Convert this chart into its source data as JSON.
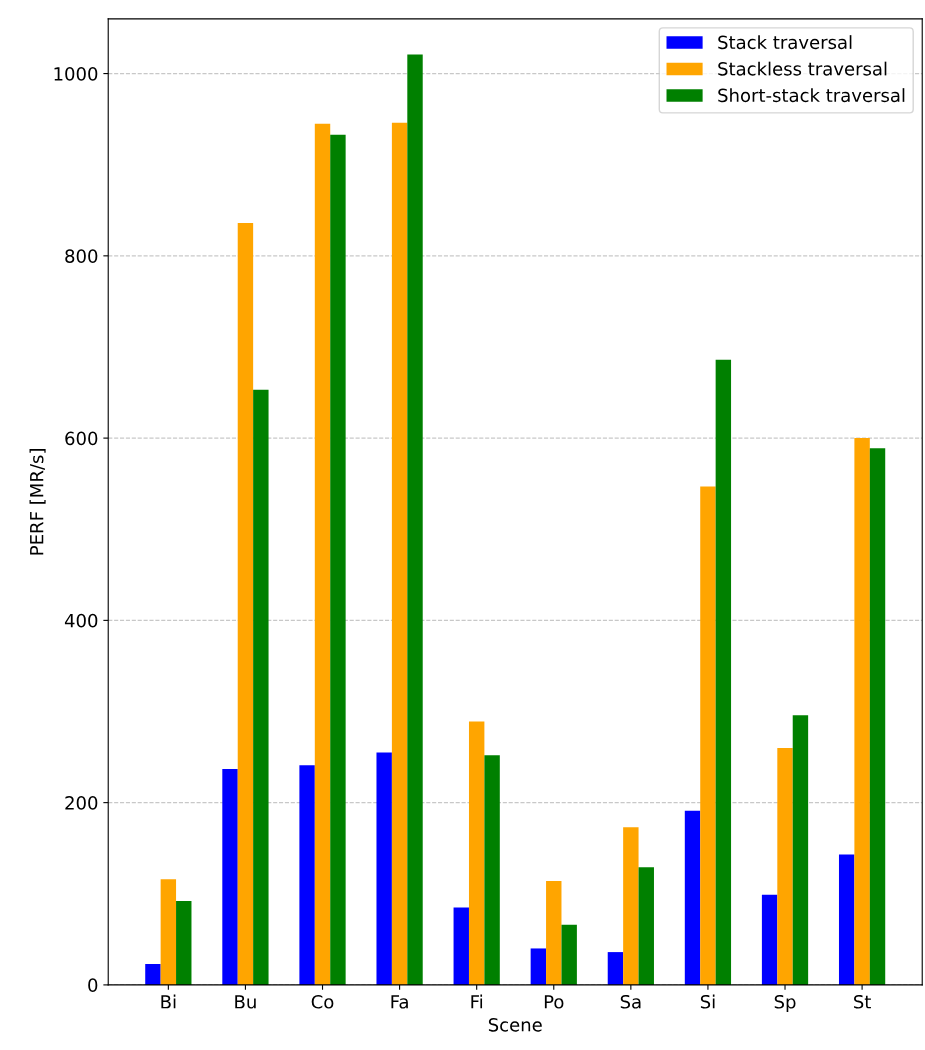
{
  "chart_data": {
    "type": "bar",
    "xlabel": "Scene",
    "ylabel": "PERF [MR/s]",
    "categories": [
      "Bi",
      "Bu",
      "Co",
      "Fa",
      "Fi",
      "Po",
      "Sa",
      "Si",
      "Sp",
      "St"
    ],
    "series": [
      {
        "name": "Stack traversal",
        "color": "#0000ff",
        "values": [
          23,
          237,
          241,
          255,
          85,
          40,
          36,
          191,
          99,
          143
        ]
      },
      {
        "name": "Stackless traversal",
        "color": "#ffa500",
        "values": [
          116,
          836,
          945,
          946,
          289,
          114,
          173,
          547,
          260,
          600
        ]
      },
      {
        "name": "Short-stack traversal",
        "color": "#008000",
        "values": [
          92,
          653,
          933,
          1021,
          252,
          66,
          129,
          686,
          296,
          589
        ]
      }
    ],
    "ylim": [
      0,
      1060
    ],
    "yticks": [
      0,
      200,
      400,
      600,
      800,
      1000
    ],
    "grid": "y",
    "legend": "top right"
  }
}
